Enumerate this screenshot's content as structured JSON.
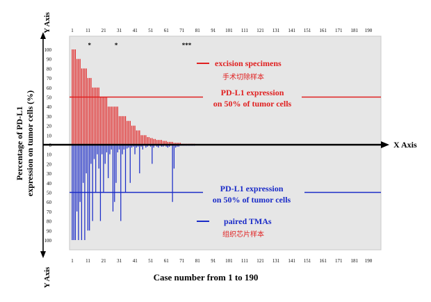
{
  "chart_data": {
    "type": "bar",
    "axis_titles": {
      "y_top": "Y Axis",
      "y_bottom": "Y Axis",
      "x_right": "X Axis",
      "ylabel_line1": "Percentage of PD-L1",
      "ylabel_line2": "expression on tumor cells (%)",
      "xlabel": "Case number from 1 to 190"
    },
    "x_ticks": [
      "1",
      "11",
      "21",
      "31",
      "41",
      "51",
      "61",
      "71",
      "81",
      "91",
      "101",
      "111",
      "121",
      "131",
      "141",
      "151",
      "161",
      "171",
      "181",
      "190"
    ],
    "y_ticks_up": [
      "0",
      "10",
      "20",
      "30",
      "40",
      "50",
      "60",
      "70",
      "80",
      "90",
      "100"
    ],
    "y_ticks_down": [
      "10",
      "20",
      "30",
      "40",
      "50",
      "60",
      "70",
      "80",
      "90",
      "100"
    ],
    "xlim": [
      1,
      190
    ],
    "ylim": [
      -100,
      100
    ],
    "threshold": 50,
    "asterisks": [
      {
        "case": 12,
        "label": "*"
      },
      {
        "case": 29,
        "label": "*"
      },
      {
        "case": 74,
        "label": "***"
      }
    ],
    "series": [
      {
        "name": "excision specimens",
        "name_cn": "手术切除样本",
        "color": "#e02020",
        "direction": "up",
        "x": [
          1,
          2,
          3,
          4,
          5,
          6,
          7,
          8,
          9,
          10,
          11,
          12,
          13,
          14,
          15,
          16,
          17,
          18,
          19,
          20,
          21,
          22,
          23,
          24,
          25,
          26,
          27,
          28,
          29,
          30,
          31,
          32,
          33,
          34,
          35,
          36,
          37,
          38,
          39,
          40,
          41,
          42,
          43,
          44,
          45,
          46,
          47,
          48,
          49,
          50,
          51,
          52,
          53,
          54,
          55,
          56,
          57,
          58,
          59,
          60,
          61,
          62,
          63,
          64,
          65,
          66,
          67,
          68,
          69,
          70,
          71,
          72,
          73,
          74,
          75,
          76,
          77,
          78,
          79
        ],
        "values": [
          100,
          100,
          100,
          90,
          90,
          90,
          80,
          80,
          80,
          80,
          70,
          70,
          70,
          60,
          60,
          60,
          60,
          60,
          50,
          50,
          50,
          50,
          50,
          40,
          40,
          40,
          40,
          40,
          40,
          40,
          30,
          30,
          30,
          30,
          30,
          25,
          25,
          25,
          20,
          20,
          20,
          15,
          15,
          15,
          10,
          10,
          10,
          10,
          8,
          8,
          7,
          7,
          6,
          6,
          5,
          5,
          5,
          5,
          4,
          4,
          4,
          3,
          3,
          3,
          3,
          2,
          2,
          2,
          2,
          2,
          1,
          1,
          1,
          1,
          1,
          1,
          1,
          1,
          1
        ]
      },
      {
        "name": "paired TMAs",
        "name_cn": "组织芯片样本",
        "color": "#1a2bc8",
        "direction": "down",
        "x": [
          1,
          2,
          3,
          4,
          5,
          6,
          7,
          8,
          9,
          10,
          11,
          12,
          13,
          14,
          15,
          16,
          17,
          18,
          19,
          20,
          21,
          22,
          23,
          24,
          25,
          26,
          27,
          28,
          29,
          30,
          31,
          32,
          33,
          34,
          35,
          36,
          37,
          38,
          39,
          40,
          41,
          42,
          43,
          44,
          45,
          46,
          47,
          48,
          49,
          50,
          51,
          52,
          53,
          54,
          55,
          56,
          57,
          58,
          59,
          60,
          61,
          62,
          63,
          64,
          65,
          66,
          67,
          68,
          69,
          70,
          71,
          72,
          73,
          74,
          75,
          76,
          77,
          78,
          79
        ],
        "values": [
          100,
          100,
          100,
          70,
          100,
          60,
          100,
          40,
          100,
          30,
          90,
          90,
          20,
          80,
          15,
          50,
          10,
          25,
          80,
          10,
          50,
          20,
          8,
          35,
          10,
          5,
          70,
          60,
          40,
          8,
          5,
          80,
          10,
          5,
          50,
          4,
          3,
          40,
          3,
          2,
          10,
          3,
          2,
          30,
          2,
          5,
          1,
          3,
          2,
          1,
          2,
          20,
          3,
          1,
          2,
          3,
          1,
          2,
          2,
          1,
          2,
          3,
          2,
          1,
          60,
          25,
          3,
          2,
          2,
          1,
          1,
          1,
          1,
          1,
          1,
          1,
          1,
          1,
          1
        ]
      }
    ],
    "threshold_labels": {
      "top_line1": "PD-L1 expression",
      "top_line2": "on 50% of tumor cells",
      "bottom_line1": "PD-L1 expression",
      "bottom_line2": "on 50% of tumor cells"
    }
  }
}
